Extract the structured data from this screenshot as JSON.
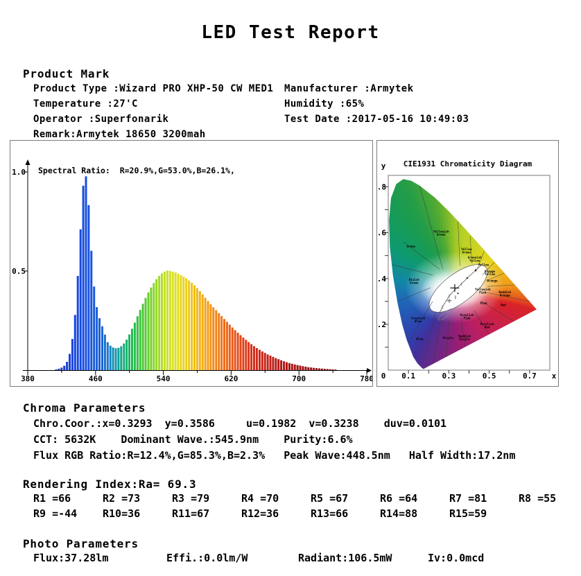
{
  "title": "LED Test Report",
  "product_mark": {
    "heading": "Product Mark",
    "rows": [
      {
        "left": "Product Type :Wizard PRO XHP-50 CW MED1",
        "right": "Manufacturer :Armytek"
      },
      {
        "left": "Temperature :27'C",
        "right": "Humidity :65%"
      },
      {
        "left": "Operator :Superfonarik",
        "right": "Test Date :2017-05-16 10:49:03"
      },
      {
        "left": "Remark:Armytek 18650 3200mah",
        "right": ""
      }
    ]
  },
  "chart_data": [
    {
      "type": "area",
      "name": "spectral-power-distribution",
      "annotation": "Spectral Ratio:  R=20.9%,G=53.0%,B=26.1%,",
      "xlim": [
        380,
        780
      ],
      "ylim": [
        0,
        1.0
      ],
      "xticks": [
        380,
        460,
        540,
        620,
        700,
        780
      ],
      "xticks_minor": [
        420,
        500,
        580,
        660,
        740
      ],
      "yticks": [
        0.5,
        1.0
      ],
      "peak_wave_nm": 448.5,
      "half_width_nm": 17.2,
      "spectrum": [
        [
          380,
          0
        ],
        [
          410,
          0
        ],
        [
          415,
          0.004
        ],
        [
          420,
          0.01
        ],
        [
          424,
          0.02
        ],
        [
          428,
          0.045
        ],
        [
          432,
          0.1
        ],
        [
          436,
          0.22
        ],
        [
          439,
          0.38
        ],
        [
          442,
          0.6
        ],
        [
          445,
          0.82
        ],
        [
          447,
          0.95
        ],
        [
          449,
          1.0
        ],
        [
          451,
          0.95
        ],
        [
          453,
          0.84
        ],
        [
          456,
          0.62
        ],
        [
          459,
          0.44
        ],
        [
          462,
          0.33
        ],
        [
          466,
          0.26
        ],
        [
          470,
          0.21
        ],
        [
          473,
          0.17
        ],
        [
          476,
          0.135
        ],
        [
          480,
          0.118
        ],
        [
          484,
          0.11
        ],
        [
          488,
          0.112
        ],
        [
          492,
          0.122
        ],
        [
          496,
          0.14
        ],
        [
          500,
          0.17
        ],
        [
          505,
          0.215
        ],
        [
          510,
          0.265
        ],
        [
          515,
          0.315
        ],
        [
          520,
          0.362
        ],
        [
          525,
          0.405
        ],
        [
          530,
          0.44
        ],
        [
          535,
          0.47
        ],
        [
          540,
          0.49
        ],
        [
          545,
          0.503
        ],
        [
          550,
          0.5
        ],
        [
          556,
          0.492
        ],
        [
          562,
          0.48
        ],
        [
          568,
          0.464
        ],
        [
          574,
          0.444
        ],
        [
          580,
          0.42
        ],
        [
          586,
          0.39
        ],
        [
          592,
          0.358
        ],
        [
          598,
          0.328
        ],
        [
          604,
          0.3
        ],
        [
          610,
          0.272
        ],
        [
          616,
          0.245
        ],
        [
          622,
          0.218
        ],
        [
          628,
          0.193
        ],
        [
          634,
          0.17
        ],
        [
          640,
          0.148
        ],
        [
          646,
          0.128
        ],
        [
          652,
          0.11
        ],
        [
          658,
          0.094
        ],
        [
          664,
          0.08
        ],
        [
          670,
          0.068
        ],
        [
          676,
          0.057
        ],
        [
          682,
          0.047
        ],
        [
          688,
          0.038
        ],
        [
          694,
          0.031
        ],
        [
          700,
          0.025
        ],
        [
          706,
          0.02
        ],
        [
          712,
          0.015
        ],
        [
          718,
          0.012
        ],
        [
          724,
          0.009
        ],
        [
          730,
          0.007
        ],
        [
          740,
          0.004
        ],
        [
          750,
          0.002
        ],
        [
          760,
          0.001
        ],
        [
          780,
          0
        ]
      ]
    },
    {
      "type": "scatter",
      "name": "cie1931-chromaticity",
      "title": "CIE1931 Chromaticity Diagram",
      "xlabel": "x",
      "ylabel": "y",
      "origin_label": "0",
      "xticks": [
        0.1,
        0.3,
        0.5,
        0.7
      ],
      "yticks": [
        0.2,
        0.4,
        0.6,
        0.8
      ],
      "points": [
        {
          "x": 0.3293,
          "y": 0.3586,
          "marker": "cross"
        }
      ],
      "regions": [
        {
          "label": "Yellowish Green",
          "x": 0.262,
          "y": 0.6
        },
        {
          "label": "Yellow Green",
          "x": 0.387,
          "y": 0.523
        },
        {
          "label": "Greenish Yellow",
          "x": 0.428,
          "y": 0.487
        },
        {
          "label": "Yellow",
          "x": 0.472,
          "y": 0.455
        },
        {
          "label": "Orange Yellow",
          "x": 0.503,
          "y": 0.427
        },
        {
          "label": "Orange",
          "x": 0.515,
          "y": 0.385
        },
        {
          "label": "Yellowish Pink",
          "x": 0.468,
          "y": 0.348
        },
        {
          "label": "Reddish Orange",
          "x": 0.578,
          "y": 0.336
        },
        {
          "label": "Pink",
          "x": 0.473,
          "y": 0.288
        },
        {
          "label": "Red",
          "x": 0.57,
          "y": 0.28
        },
        {
          "label": "Purplish Pink",
          "x": 0.39,
          "y": 0.236
        },
        {
          "label": "Purplish Red",
          "x": 0.49,
          "y": 0.196
        },
        {
          "label": "Reddish Purple",
          "x": 0.378,
          "y": 0.143
        },
        {
          "label": "Purple",
          "x": 0.296,
          "y": 0.136
        },
        {
          "label": "Blue",
          "x": 0.156,
          "y": 0.131
        },
        {
          "label": "Greenish Blue",
          "x": 0.148,
          "y": 0.222
        },
        {
          "label": "Bluish Green",
          "x": 0.128,
          "y": 0.39
        },
        {
          "label": "Green",
          "x": 0.112,
          "y": 0.536
        }
      ]
    }
  ],
  "chroma": {
    "heading": "Chroma Parameters",
    "lines": [
      "Chro.Coor.:x=0.3293  y=0.3586     u=0.1982  v=0.3238    duv=0.0101",
      "CCT: 5632K    Dominant Wave.:545.9nm    Purity:6.6%",
      "Flux RGB Ratio:R=12.4%,G=85.3%,B=2.3%   Peak Wave:448.5nm   Half Width:17.2nm"
    ]
  },
  "rendering_index": {
    "heading": "Rendering Index:Ra= 69.3",
    "row1": [
      "R1 =66",
      "R2 =73",
      "R3 =79",
      "R4 =70",
      "R5 =67",
      "R6 =64",
      "R7 =81",
      "R8 =55"
    ],
    "row2": [
      "R9 =-44",
      "R10=36",
      "R11=67",
      "R12=36",
      "R13=66",
      "R14=88",
      "R15=59"
    ]
  },
  "photo": {
    "heading": "Photo Parameters",
    "values": [
      "Flux:37.28lm",
      "Effi.:0.0lm/W",
      "Radiant:106.5mW",
      "Iv:0.0mcd"
    ]
  }
}
